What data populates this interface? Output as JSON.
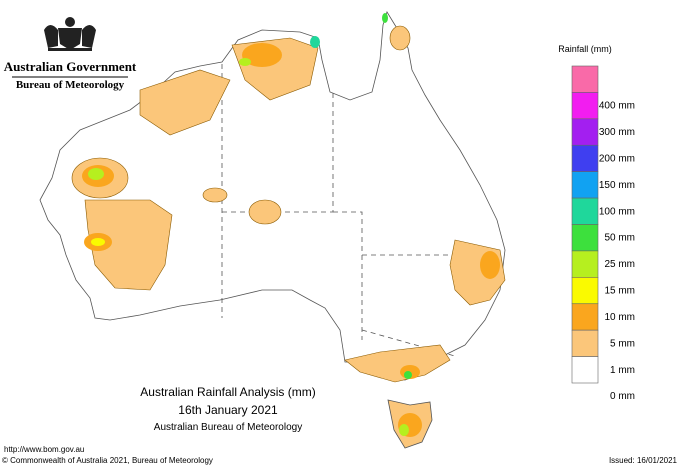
{
  "header": {
    "government": "Australian Government",
    "bureau": "Bureau of Meteorology"
  },
  "legend": {
    "title": "Rainfall (mm)",
    "colors": [
      "#f96aa8",
      "#f21df0",
      "#a31ff0",
      "#3f3ff0",
      "#11a2f2",
      "#1fd79b",
      "#3de03d",
      "#b6ef1f",
      "#fafa00",
      "#faa61e",
      "#fbc67a",
      "#ffffff"
    ],
    "labels": [
      "400 mm",
      "300 mm",
      "200 mm",
      "150 mm",
      "100 mm",
      "50 mm",
      "25 mm",
      "15 mm",
      "10 mm",
      "5 mm",
      "1 mm",
      "0 mm"
    ]
  },
  "caption": {
    "title": "Australian Rainfall Analysis (mm)",
    "date": "16th January 2021",
    "source": "Australian Bureau of Meteorology"
  },
  "footer": {
    "url": "http://www.bom.gov.au",
    "copyright": "© Commonwealth of Australia 2021, Bureau of Meteorology",
    "issued": "Issued: 16/01/2021"
  }
}
